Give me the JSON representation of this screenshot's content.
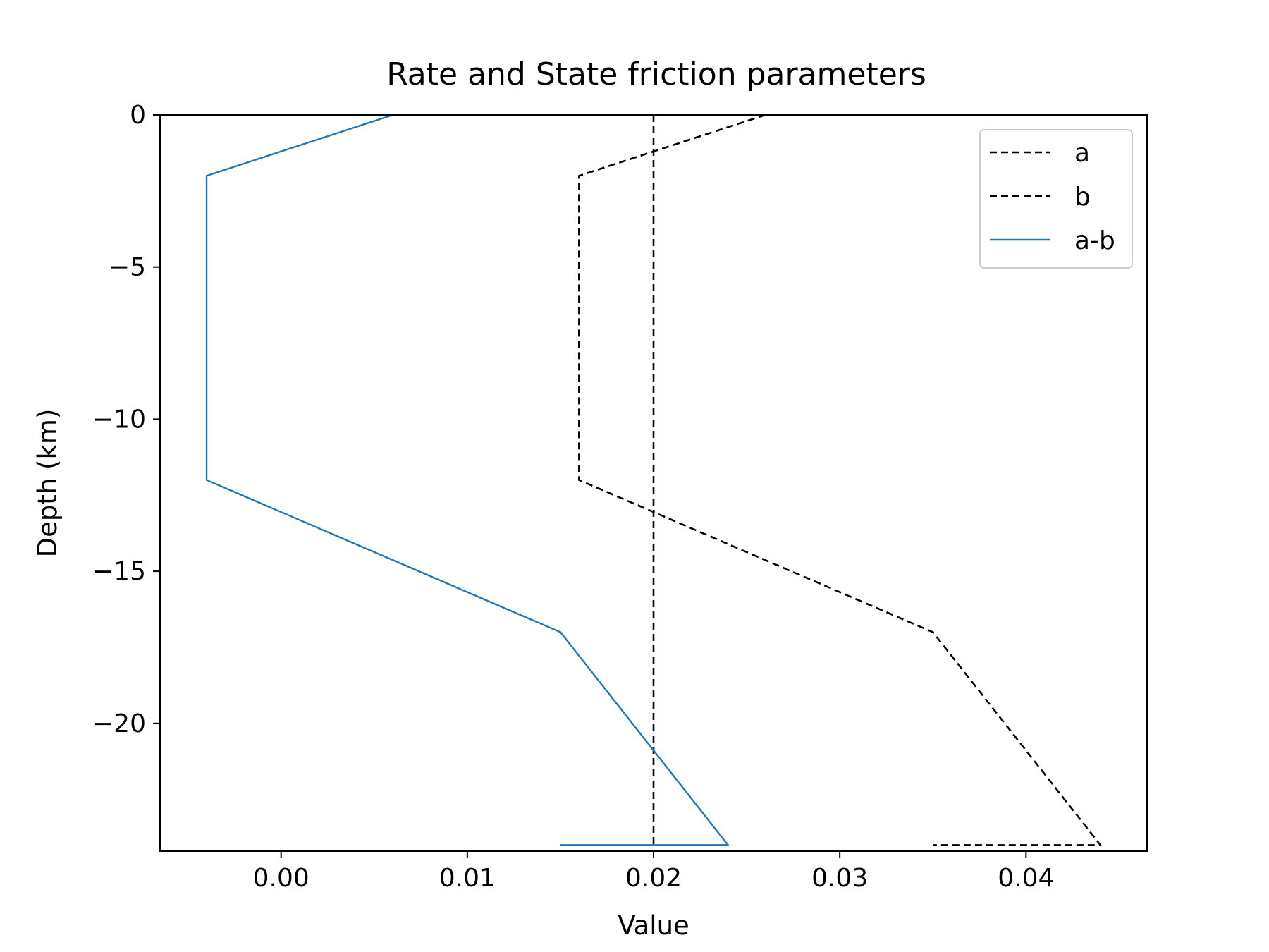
{
  "chart_data": {
    "type": "line",
    "title": "Rate and State friction parameters",
    "xlabel": "Value",
    "ylabel": "Depth (km)",
    "xlim": [
      -0.0065,
      0.0465
    ],
    "ylim": [
      -24.2,
      0
    ],
    "xticks": [
      0.0,
      0.01,
      0.02,
      0.03,
      0.04
    ],
    "xtick_labels": [
      "0.00",
      "0.01",
      "0.02",
      "0.03",
      "0.04"
    ],
    "yticks": [
      0,
      -5,
      -10,
      -15,
      -20
    ],
    "ytick_labels": [
      "0",
      "−5",
      "−10",
      "−15",
      "−20"
    ],
    "legend_position": "top-right",
    "grid": false,
    "series": [
      {
        "name": "a",
        "color": "#000000",
        "style": "dashed",
        "x": [
          0.026,
          0.016,
          0.016,
          0.035,
          0.044,
          0.035
        ],
        "y": [
          0,
          -2,
          -12,
          -17,
          -24.0,
          -24.0
        ]
      },
      {
        "name": "b",
        "color": "#000000",
        "style": "dashed",
        "x": [
          0.02,
          0.02
        ],
        "y": [
          0,
          -24.0
        ]
      },
      {
        "name": "a-b",
        "color": "#1f77b4",
        "style": "solid",
        "x": [
          0.006,
          -0.004,
          -0.004,
          0.015,
          0.024,
          0.015
        ],
        "y": [
          0,
          -2,
          -12,
          -17,
          -24.0,
          -24.0
        ]
      }
    ]
  }
}
